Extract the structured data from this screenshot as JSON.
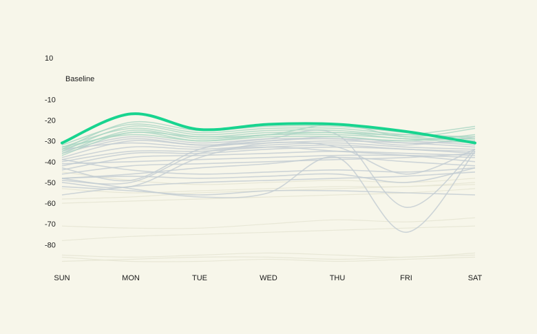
{
  "chart_data": {
    "type": "line",
    "title": "",
    "xlabel": "",
    "ylabel": "",
    "categories": [
      "SUN",
      "MON",
      "TUE",
      "WED",
      "THU",
      "FRI",
      "SAT"
    ],
    "y_ticks": [
      10,
      -10,
      -20,
      -30,
      -40,
      -50,
      -60,
      -70,
      -80
    ],
    "ylim": [
      -90,
      10
    ],
    "grid": false,
    "legend": "none",
    "annotation": {
      "text": "Baseline",
      "value": 0
    },
    "highlight": {
      "values": [
        -31,
        -17,
        -24.5,
        -22,
        -22,
        -25.5,
        -31
      ],
      "color": "#18d48f"
    },
    "background_series_colors": {
      "primary": "#c2ccd2",
      "teal": "#a9d6c3",
      "faint": "#e6e6d4"
    },
    "background_series": [
      {
        "values": [
          -34,
          -21,
          -25,
          -23,
          -23,
          -26,
          -29
        ],
        "tone": "teal"
      },
      {
        "values": [
          -32,
          -22,
          -26,
          -24,
          -24,
          -27,
          -28
        ],
        "tone": "teal"
      },
      {
        "values": [
          -35,
          -23,
          -27,
          -25,
          -25,
          -28,
          -30
        ],
        "tone": "teal"
      },
      {
        "values": [
          -33,
          -24,
          -28,
          -26,
          -26,
          -27,
          -23
        ],
        "tone": "teal"
      },
      {
        "values": [
          -36,
          -25,
          -29,
          -27,
          -27,
          -29,
          -31
        ],
        "tone": "teal"
      },
      {
        "values": [
          -34,
          -26,
          -28,
          -27,
          -22,
          -28,
          -24
        ],
        "tone": "teal"
      },
      {
        "values": [
          -33,
          -27,
          -30,
          -28,
          -28,
          -30,
          -27
        ],
        "tone": "teal"
      },
      {
        "values": [
          -37,
          -26,
          -30,
          -27,
          -26,
          -29,
          -29
        ],
        "tone": "teal"
      },
      {
        "values": [
          -35,
          -28,
          -31,
          -29,
          -29,
          -30,
          -32
        ],
        "tone": "primary"
      },
      {
        "values": [
          -36,
          -29,
          -32,
          -30,
          -28,
          -31,
          -30
        ],
        "tone": "primary"
      },
      {
        "values": [
          -38,
          -30,
          -32,
          -31,
          -30,
          -31,
          -33
        ],
        "tone": "primary"
      },
      {
        "values": [
          -34,
          -31,
          -33,
          -30,
          -29,
          -32,
          -28
        ],
        "tone": "primary"
      },
      {
        "values": [
          -39,
          -33,
          -34,
          -32,
          -31,
          -33,
          -34
        ],
        "tone": "primary"
      },
      {
        "values": [
          -40,
          -35,
          -35,
          -33,
          -32,
          -34,
          -35
        ],
        "tone": "primary"
      },
      {
        "values": [
          -42,
          -36,
          -36,
          -34,
          -33,
          -34,
          -36
        ],
        "tone": "primary"
      },
      {
        "values": [
          -44,
          -38,
          -37,
          -36,
          -35,
          -36,
          -37
        ],
        "tone": "primary"
      },
      {
        "values": [
          -41,
          -40,
          -39,
          -38,
          -37,
          -37,
          -38
        ],
        "tone": "primary"
      },
      {
        "values": [
          -46,
          -42,
          -41,
          -40,
          -39,
          -38,
          -36
        ],
        "tone": "primary"
      },
      {
        "values": [
          -48,
          -46,
          -43,
          -41,
          -38,
          -40,
          -42
        ],
        "tone": "primary"
      },
      {
        "values": [
          -49,
          -50,
          -36,
          -33,
          -35,
          -37,
          -40
        ],
        "tone": "primary"
      },
      {
        "values": [
          -50,
          -52,
          -38,
          -31,
          -33,
          -46,
          -34
        ],
        "tone": "primary"
      },
      {
        "values": [
          -43,
          -49,
          -34,
          -29,
          -27,
          -62,
          -34
        ],
        "tone": "primary"
      },
      {
        "values": [
          -48,
          -47,
          -48,
          -47,
          -46,
          -50,
          -43
        ],
        "tone": "primary"
      },
      {
        "values": [
          -52,
          -54,
          -56,
          -54,
          -54,
          -55,
          -56
        ],
        "tone": "primary"
      },
      {
        "values": [
          -56,
          -52,
          -50,
          -49,
          -48,
          -47,
          -45
        ],
        "tone": "primary"
      },
      {
        "values": [
          -48,
          -53,
          -57,
          -55,
          -38,
          -74,
          -35
        ],
        "tone": "primary"
      },
      {
        "values": [
          -39,
          -44,
          -46,
          -45,
          -44,
          -45,
          -43
        ],
        "tone": "primary"
      },
      {
        "values": [
          -45,
          -49,
          -51,
          -50,
          -49,
          -50,
          -48
        ],
        "tone": "faint"
      },
      {
        "values": [
          -53,
          -55,
          -54,
          -53,
          -52,
          -52,
          -50
        ],
        "tone": "faint"
      },
      {
        "values": [
          -58,
          -57,
          -55,
          -54,
          -53,
          -52,
          -51
        ],
        "tone": "faint"
      },
      {
        "values": [
          -60,
          -59,
          -58,
          -57,
          -56,
          -55,
          -53
        ],
        "tone": "faint"
      },
      {
        "values": [
          -71,
          -72,
          -72,
          -70,
          -68,
          -69,
          -67
        ],
        "tone": "faint"
      },
      {
        "values": [
          -78,
          -76,
          -75,
          -74,
          -73,
          -72,
          -71
        ],
        "tone": "faint"
      },
      {
        "values": [
          -85,
          -86,
          -85,
          -84,
          -85,
          -86,
          -84
        ],
        "tone": "faint"
      },
      {
        "values": [
          -88,
          -87,
          -86,
          -86,
          -87,
          -86,
          -85
        ],
        "tone": "faint"
      },
      {
        "values": [
          -86,
          -88,
          -88,
          -87,
          -88,
          -87,
          -86
        ],
        "tone": "faint"
      }
    ]
  }
}
